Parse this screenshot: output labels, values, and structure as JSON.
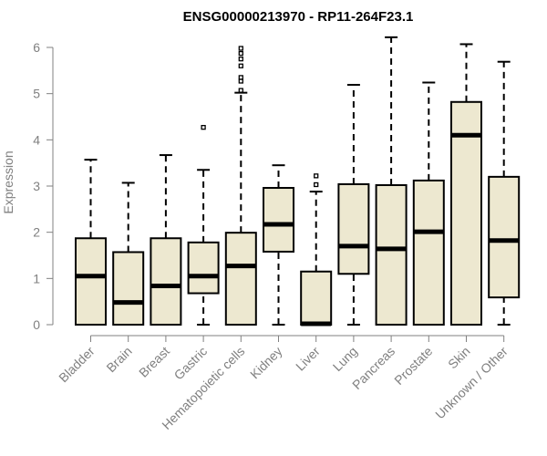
{
  "chart_data": {
    "type": "boxplot",
    "title": "ENSG00000213970 - RP11-264F23.1",
    "xlabel": "",
    "ylabel": "Expression",
    "ylim": [
      0,
      6.2
    ],
    "yticks": [
      0,
      1,
      2,
      3,
      4,
      5,
      6
    ],
    "grid": false,
    "box_fill": "#EDE8D0",
    "stroke": "#000000",
    "axis_color": "#808080",
    "categories": [
      "Bladder",
      "Brain",
      "Breast",
      "Gastric",
      "Hematopoietic cells",
      "Kidney",
      "Liver",
      "Lung",
      "Pancreas",
      "Prostate",
      "Skin",
      "Unknown / Other"
    ],
    "boxes": [
      {
        "category": "Bladder",
        "min": 0,
        "q1": 0,
        "median": 1.05,
        "q3": 1.87,
        "max": 3.57,
        "outliers": []
      },
      {
        "category": "Brain",
        "min": 0,
        "q1": 0,
        "median": 0.48,
        "q3": 1.57,
        "max": 3.07,
        "outliers": []
      },
      {
        "category": "Breast",
        "min": 0,
        "q1": 0,
        "median": 0.84,
        "q3": 1.87,
        "max": 3.67,
        "outliers": []
      },
      {
        "category": "Gastric",
        "min": 0,
        "q1": 0.68,
        "median": 1.05,
        "q3": 1.78,
        "max": 3.35,
        "outliers": [
          4.27
        ]
      },
      {
        "category": "Hematopoietic cells",
        "min": 0,
        "q1": 0,
        "median": 1.27,
        "q3": 1.99,
        "max": 5.02,
        "outliers": [
          5.07,
          5.27,
          5.35,
          5.6,
          5.75,
          5.87,
          5.98
        ]
      },
      {
        "category": "Kidney",
        "min": 0,
        "q1": 1.58,
        "median": 2.17,
        "q3": 2.96,
        "max": 3.45,
        "outliers": []
      },
      {
        "category": "Liver",
        "min": 0,
        "q1": 0,
        "median": 0.02,
        "q3": 1.15,
        "max": 2.88,
        "outliers": [
          3.03,
          3.22
        ]
      },
      {
        "category": "Lung",
        "min": 0,
        "q1": 1.1,
        "median": 1.7,
        "q3": 3.04,
        "max": 5.19,
        "outliers": []
      },
      {
        "category": "Pancreas",
        "min": 0,
        "q1": 0,
        "median": 1.64,
        "q3": 3.02,
        "max": 6.22,
        "outliers": []
      },
      {
        "category": "Prostate",
        "min": 0,
        "q1": 0,
        "median": 2.01,
        "q3": 3.12,
        "max": 5.24,
        "outliers": []
      },
      {
        "category": "Skin",
        "min": 0,
        "q1": 0,
        "median": 4.1,
        "q3": 4.82,
        "max": 6.07,
        "outliers": []
      },
      {
        "category": "Unknown / Other",
        "min": 0,
        "q1": 0.59,
        "median": 1.82,
        "q3": 3.2,
        "max": 5.69,
        "outliers": []
      }
    ]
  }
}
